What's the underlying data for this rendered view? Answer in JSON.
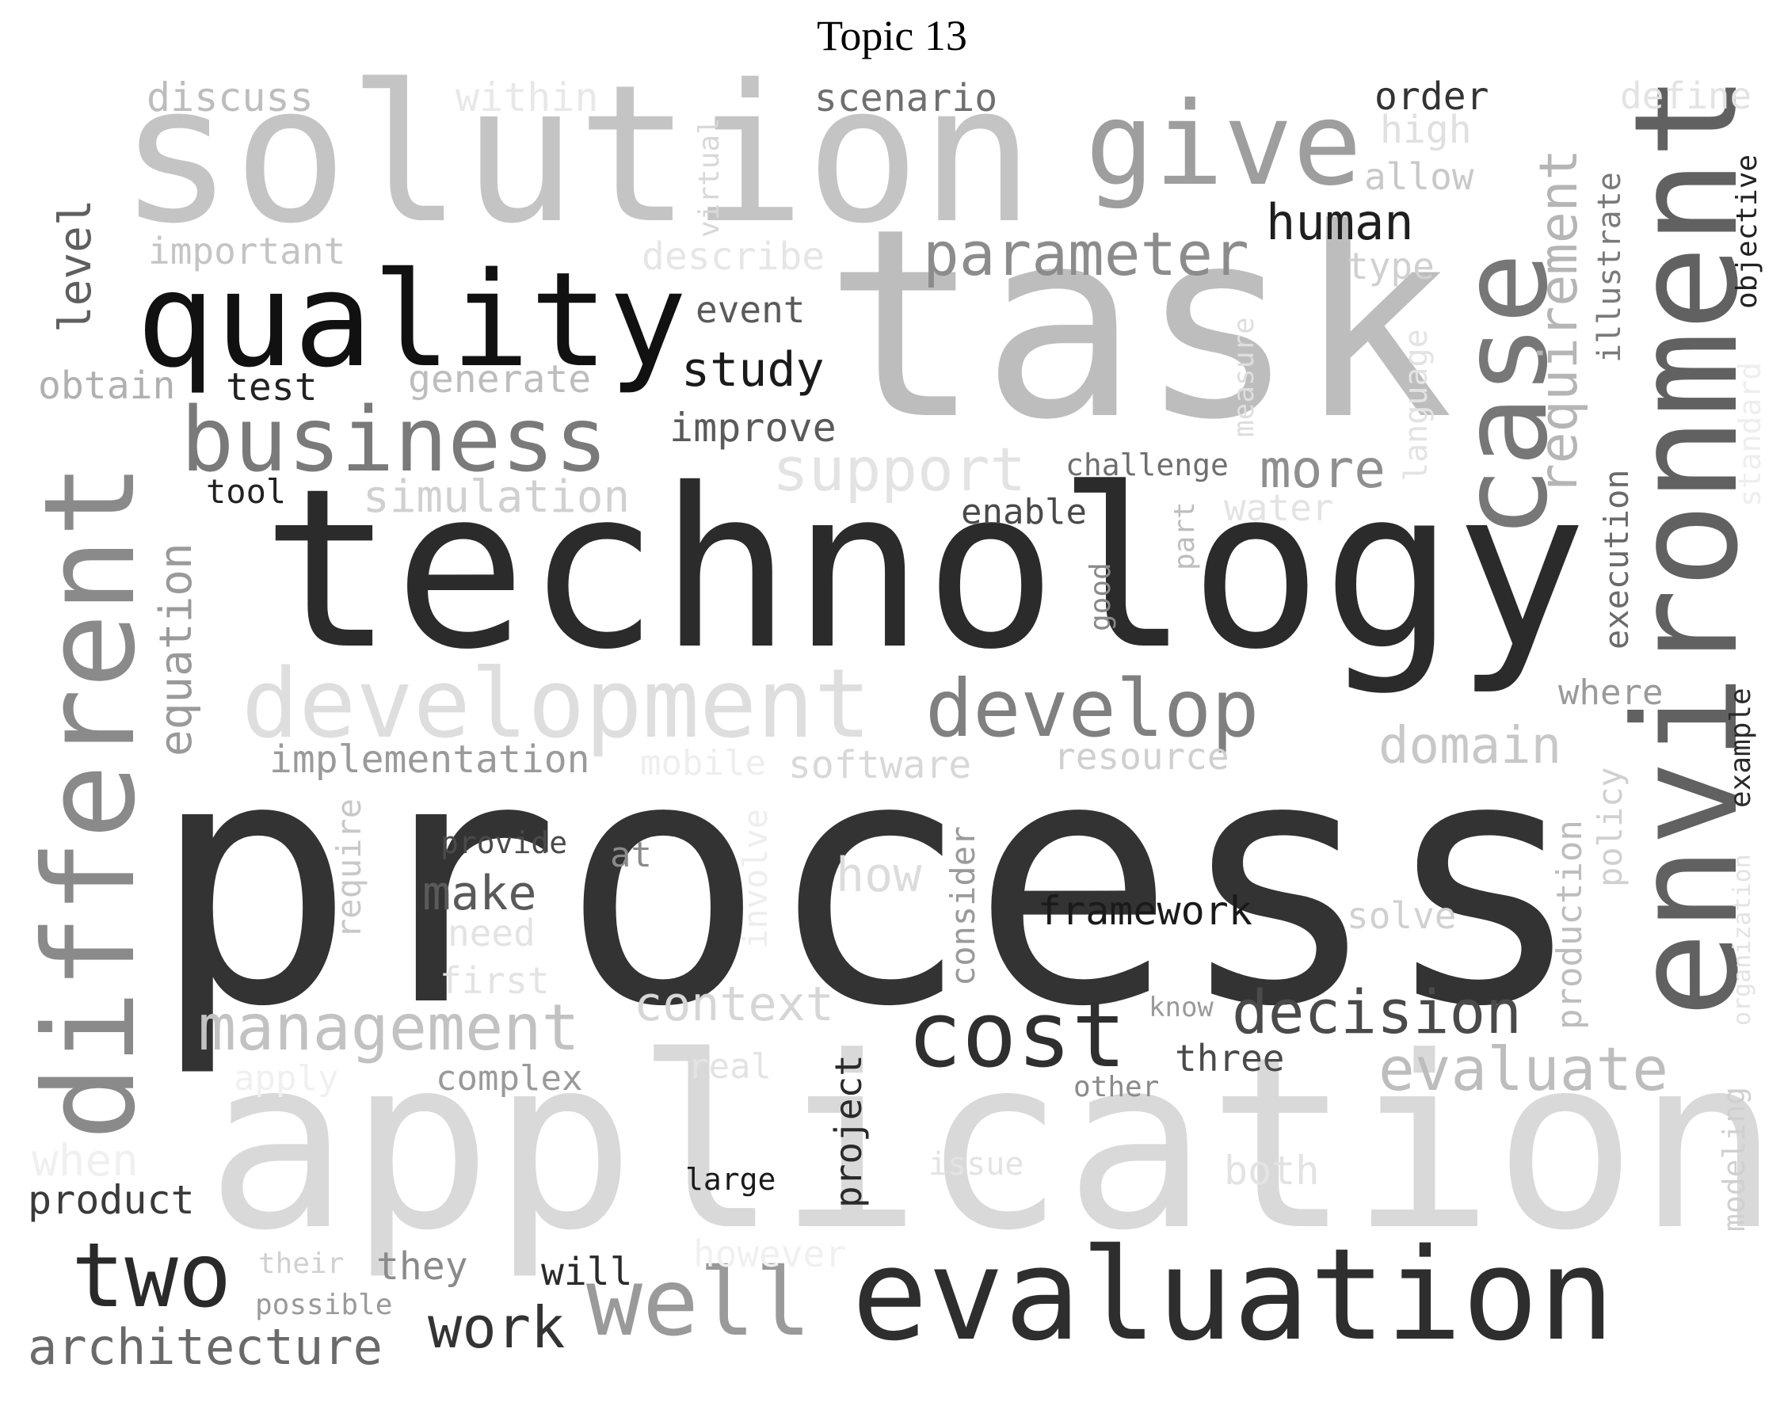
{
  "title": "Topic 13",
  "words": [
    {
      "text": "process",
      "color": "#333333"
    },
    {
      "text": "application",
      "color": "#d9d9d9"
    },
    {
      "text": "task",
      "color": "#bdbdbd"
    },
    {
      "text": "technology",
      "color": "#2b2b2b"
    },
    {
      "text": "solution",
      "color": "#c4c4c4"
    },
    {
      "text": "evaluation",
      "color": "#2e2e2e"
    },
    {
      "text": "environment",
      "color": "#616161"
    },
    {
      "text": "quality",
      "color": "#111111"
    },
    {
      "text": "different",
      "color": "#8a8a8a"
    },
    {
      "text": "development",
      "color": "#dedede"
    },
    {
      "text": "case",
      "color": "#777777"
    },
    {
      "text": "business",
      "color": "#7a7a7a"
    },
    {
      "text": "give",
      "color": "#9e9e9e"
    },
    {
      "text": "develop",
      "color": "#808080"
    },
    {
      "text": "cost",
      "color": "#2f2f2f"
    },
    {
      "text": "well",
      "color": "#9a9a9a"
    },
    {
      "text": "two",
      "color": "#2a2a2a"
    },
    {
      "text": "decision",
      "color": "#4a4a4a"
    },
    {
      "text": "management",
      "color": "#c2c2c2"
    },
    {
      "text": "evaluate",
      "color": "#bdbdbd"
    },
    {
      "text": "parameter",
      "color": "#8c8c8c"
    },
    {
      "text": "requirement",
      "color": "#b5b5b5"
    },
    {
      "text": "architecture",
      "color": "#6a6a6a"
    },
    {
      "text": "work",
      "color": "#333333"
    },
    {
      "text": "domain",
      "color": "#c8c8c8"
    },
    {
      "text": "support",
      "color": "#e3e3e3"
    },
    {
      "text": "more",
      "color": "#8f8f8f"
    },
    {
      "text": "equation",
      "color": "#9a9a9a"
    },
    {
      "text": "simulation",
      "color": "#d0d0d0"
    },
    {
      "text": "context",
      "color": "#d6d6d6"
    },
    {
      "text": "human",
      "color": "#1f1f1f"
    },
    {
      "text": "study",
      "color": "#1a1a1a"
    },
    {
      "text": "make",
      "color": "#5a5a5a"
    },
    {
      "text": "how",
      "color": "#dcdcdc"
    },
    {
      "text": "level",
      "color": "#5f5f5f"
    },
    {
      "text": "framework",
      "color": "#1a1a1a"
    },
    {
      "text": "implementation",
      "color": "#9a9a9a"
    },
    {
      "text": "improve",
      "color": "#5a5a5a"
    },
    {
      "text": "execution",
      "color": "#6a6a6a"
    },
    {
      "text": "product",
      "color": "#3a3a3a"
    },
    {
      "text": "software",
      "color": "#d8d8d8"
    },
    {
      "text": "resource",
      "color": "#cfcfcf"
    },
    {
      "text": "discuss",
      "color": "#bdbdbd"
    },
    {
      "text": "scenario",
      "color": "#6f6f6f"
    },
    {
      "text": "order",
      "color": "#333333"
    },
    {
      "text": "important",
      "color": "#c4c4c4"
    },
    {
      "text": "describe",
      "color": "#e6e6e6"
    },
    {
      "text": "event",
      "color": "#5a5a5a"
    },
    {
      "text": "test",
      "color": "#222222"
    },
    {
      "text": "generate",
      "color": "#bdbdbd"
    },
    {
      "text": "obtain",
      "color": "#b0b0b0"
    },
    {
      "text": "tool",
      "color": "#222222"
    },
    {
      "text": "within",
      "color": "#e8e8e8"
    },
    {
      "text": "high",
      "color": "#e0e0e0"
    },
    {
      "text": "allow",
      "color": "#c8c8c8"
    },
    {
      "text": "type",
      "color": "#d0d0d0"
    },
    {
      "text": "define",
      "color": "#e3e3e3"
    },
    {
      "text": "objective",
      "color": "#222222"
    },
    {
      "text": "illustrate",
      "color": "#7a7a7a"
    },
    {
      "text": "standard",
      "color": "#eeeeee"
    },
    {
      "text": "language",
      "color": "#e3e3e3"
    },
    {
      "text": "measure",
      "color": "#dedede"
    },
    {
      "text": "challenge",
      "color": "#6f6f6f"
    },
    {
      "text": "water",
      "color": "#e3e3e3"
    },
    {
      "text": "enable",
      "color": "#4a4a4a"
    },
    {
      "text": "part",
      "color": "#bdbdbd"
    },
    {
      "text": "good",
      "color": "#8a8a8a"
    },
    {
      "text": "where",
      "color": "#9a9a9a"
    },
    {
      "text": "example",
      "color": "#2a2a2a"
    },
    {
      "text": "policy",
      "color": "#d0d0d0"
    },
    {
      "text": "production",
      "color": "#bdbdbd"
    },
    {
      "text": "organization",
      "color": "#e3e3e3"
    },
    {
      "text": "modeling",
      "color": "#d0d0d0"
    },
    {
      "text": "solve",
      "color": "#d0d0d0"
    },
    {
      "text": "consider",
      "color": "#9a9a9a"
    },
    {
      "text": "involve",
      "color": "#eeeeee"
    },
    {
      "text": "mobile",
      "color": "#eeeeee"
    },
    {
      "text": "provide",
      "color": "#4a4a4a"
    },
    {
      "text": "at",
      "color": "#8a8a8a"
    },
    {
      "text": "require",
      "color": "#c8c8c8"
    },
    {
      "text": "need",
      "color": "#e3e3e3"
    },
    {
      "text": "first",
      "color": "#e3e3e3"
    },
    {
      "text": "know",
      "color": "#9a9a9a"
    },
    {
      "text": "three",
      "color": "#4a4a4a"
    },
    {
      "text": "other",
      "color": "#8a8a8a"
    },
    {
      "text": "complex",
      "color": "#9a9a9a"
    },
    {
      "text": "real",
      "color": "#e3e3e3"
    },
    {
      "text": "apply",
      "color": "#f0f0f0"
    },
    {
      "text": "project",
      "color": "#2a2a2a"
    },
    {
      "text": "when",
      "color": "#f0f0f0"
    },
    {
      "text": "issue",
      "color": "#e3e3e3"
    },
    {
      "text": "both",
      "color": "#e3e3e3"
    },
    {
      "text": "large",
      "color": "#1a1a1a"
    },
    {
      "text": "their",
      "color": "#d0d0d0"
    },
    {
      "text": "they",
      "color": "#8a8a8a"
    },
    {
      "text": "will",
      "color": "#2a2a2a"
    },
    {
      "text": "however",
      "color": "#f0f0f0"
    },
    {
      "text": "possible",
      "color": "#9a9a9a"
    },
    {
      "text": "virtual",
      "color": "#d8d8d8"
    }
  ]
}
